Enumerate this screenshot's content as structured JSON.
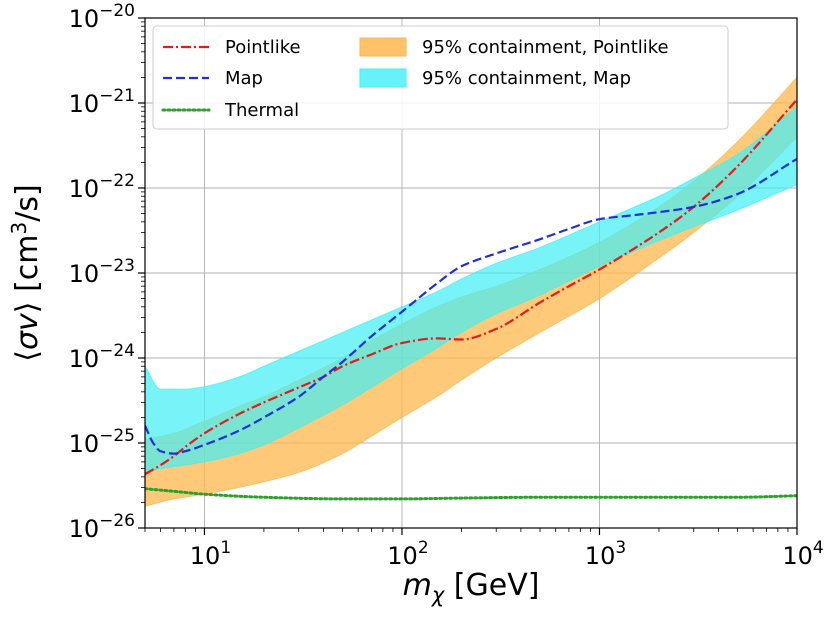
{
  "chart_data": {
    "type": "line",
    "xlabel": {
      "base": "m",
      "sub": "χ",
      "rest": " [GeV]"
    },
    "ylabel": {
      "open": "⟨",
      "var": "σv",
      "close": "⟩",
      "pre": " [cm",
      "sup": "3",
      "post": "/s]"
    },
    "xscale": "log",
    "yscale": "log",
    "xlim": [
      5,
      10000
    ],
    "ylim": [
      1e-26,
      1e-20
    ],
    "grid": true,
    "legend_position": "top",
    "x_ticks": [
      {
        "value": 10,
        "base": "10",
        "exp": "1"
      },
      {
        "value": 100,
        "base": "10",
        "exp": "2"
      },
      {
        "value": 1000,
        "base": "10",
        "exp": "3"
      },
      {
        "value": 10000,
        "base": "10",
        "exp": "4"
      }
    ],
    "y_ticks": [
      {
        "value": 1e-26,
        "base": "10",
        "exp": "−26"
      },
      {
        "value": 1e-25,
        "base": "10",
        "exp": "−25"
      },
      {
        "value": 1e-24,
        "base": "10",
        "exp": "−24"
      },
      {
        "value": 1e-23,
        "base": "10",
        "exp": "−23"
      },
      {
        "value": 1e-22,
        "base": "10",
        "exp": "−22"
      },
      {
        "value": 1e-21,
        "base": "10",
        "exp": "−21"
      },
      {
        "value": 1e-20,
        "base": "10",
        "exp": "−20"
      }
    ],
    "series": [
      {
        "name": "Pointlike",
        "color": "#e41a1c",
        "dash": "dashdot",
        "x": [
          5,
          6,
          7,
          8,
          10,
          15,
          20,
          30,
          40,
          50,
          70,
          100,
          150,
          200,
          300,
          500,
          700,
          1000,
          2000,
          3000,
          5000,
          10000
        ],
        "y": [
          4.3e-26,
          5.5e-26,
          7e-26,
          9e-26,
          1.3e-25,
          2.2e-25,
          3e-25,
          4.5e-25,
          6e-25,
          8e-25,
          1.1e-24,
          1.5e-24,
          1.7e-24,
          1.65e-24,
          2.2e-24,
          4.5e-24,
          7e-24,
          1.1e-23,
          3e-23,
          6e-23,
          1.8e-22,
          1.1e-21
        ]
      },
      {
        "name": "Map",
        "color": "#1f2fdf",
        "dash": "dashed",
        "x": [
          5,
          5.5,
          6,
          7,
          8,
          10,
          15,
          20,
          30,
          40,
          50,
          70,
          100,
          150,
          200,
          300,
          500,
          700,
          1000,
          1500,
          2000,
          3000,
          5000,
          10000
        ],
        "y": [
          1.6e-25,
          1e-25,
          8e-26,
          7.5e-26,
          8e-26,
          9.5e-26,
          1.4e-25,
          2e-25,
          3.5e-25,
          6e-25,
          9e-25,
          1.8e-24,
          3.5e-24,
          7.5e-24,
          1.2e-23,
          1.7e-23,
          2.5e-23,
          3.3e-23,
          4.3e-23,
          4.8e-23,
          5.2e-23,
          6e-23,
          8.5e-23,
          2.2e-22
        ]
      },
      {
        "name": "Thermal",
        "color": "#2ca02c",
        "dash": "dotted",
        "x": [
          5,
          7,
          10,
          20,
          50,
          100,
          200,
          500,
          1000,
          2000,
          5000,
          10000
        ],
        "y": [
          2.9e-26,
          2.7e-26,
          2.5e-26,
          2.3e-26,
          2.2e-26,
          2.2e-26,
          2.25e-26,
          2.3e-26,
          2.3e-26,
          2.3e-26,
          2.3e-26,
          2.4e-26
        ]
      }
    ],
    "bands": [
      {
        "name": "95% containment, Pointlike",
        "color": "#ffb74d",
        "opacity": 0.75,
        "x": [
          5,
          7,
          10,
          15,
          20,
          30,
          50,
          70,
          100,
          150,
          200,
          300,
          500,
          1000,
          2000,
          3000,
          5000,
          10000
        ],
        "lower": [
          1.8e-26,
          2.2e-26,
          2.5e-26,
          3e-26,
          3.5e-26,
          4.5e-26,
          7.5e-26,
          1.2e-25,
          2e-25,
          3.5e-25,
          5.5e-25,
          1e-24,
          2e-24,
          5e-24,
          1.5e-23,
          3e-23,
          8e-23,
          4e-22
        ],
        "upper": [
          1.1e-25,
          1.3e-25,
          1.8e-25,
          2.7e-25,
          3.5e-25,
          5.5e-25,
          1e-24,
          1.6e-24,
          2.5e-24,
          4e-24,
          5.2e-24,
          7e-24,
          1.1e-23,
          2.3e-23,
          6e-23,
          1.2e-22,
          3.5e-22,
          2e-21
        ]
      },
      {
        "name": "95% containment, Map",
        "color": "#3ef0f7",
        "opacity": 0.7,
        "x": [
          5,
          6,
          8,
          10,
          15,
          20,
          30,
          50,
          70,
          100,
          150,
          200,
          300,
          500,
          1000,
          2000,
          3000,
          5000,
          10000
        ],
        "lower": [
          4.5e-26,
          5e-26,
          5.5e-26,
          6e-26,
          7.5e-26,
          9.5e-26,
          1.5e-25,
          2.8e-25,
          4.5e-25,
          7.5e-25,
          1.3e-24,
          2e-24,
          3.3e-24,
          5.5e-24,
          1.2e-23,
          2.4e-23,
          3.5e-23,
          5.5e-23,
          1.1e-22
        ],
        "upper": [
          8e-25,
          4.3e-25,
          4.3e-25,
          4.6e-25,
          6e-25,
          8e-25,
          1.2e-24,
          2e-24,
          2.8e-24,
          4e-24,
          6e-24,
          8.5e-24,
          1.3e-23,
          2e-23,
          4e-23,
          8e-23,
          1.3e-22,
          2.5e-22,
          9e-22
        ]
      }
    ],
    "legend": [
      {
        "label": "Pointlike",
        "kind": "line",
        "ref": "Pointlike"
      },
      {
        "label": "Map",
        "kind": "line",
        "ref": "Map"
      },
      {
        "label": "Thermal",
        "kind": "line",
        "ref": "Thermal"
      },
      {
        "label": "95% containment, Pointlike",
        "kind": "band",
        "ref": "95% containment, Pointlike"
      },
      {
        "label": "95% containment, Map",
        "kind": "band",
        "ref": "95% containment, Map"
      }
    ]
  }
}
